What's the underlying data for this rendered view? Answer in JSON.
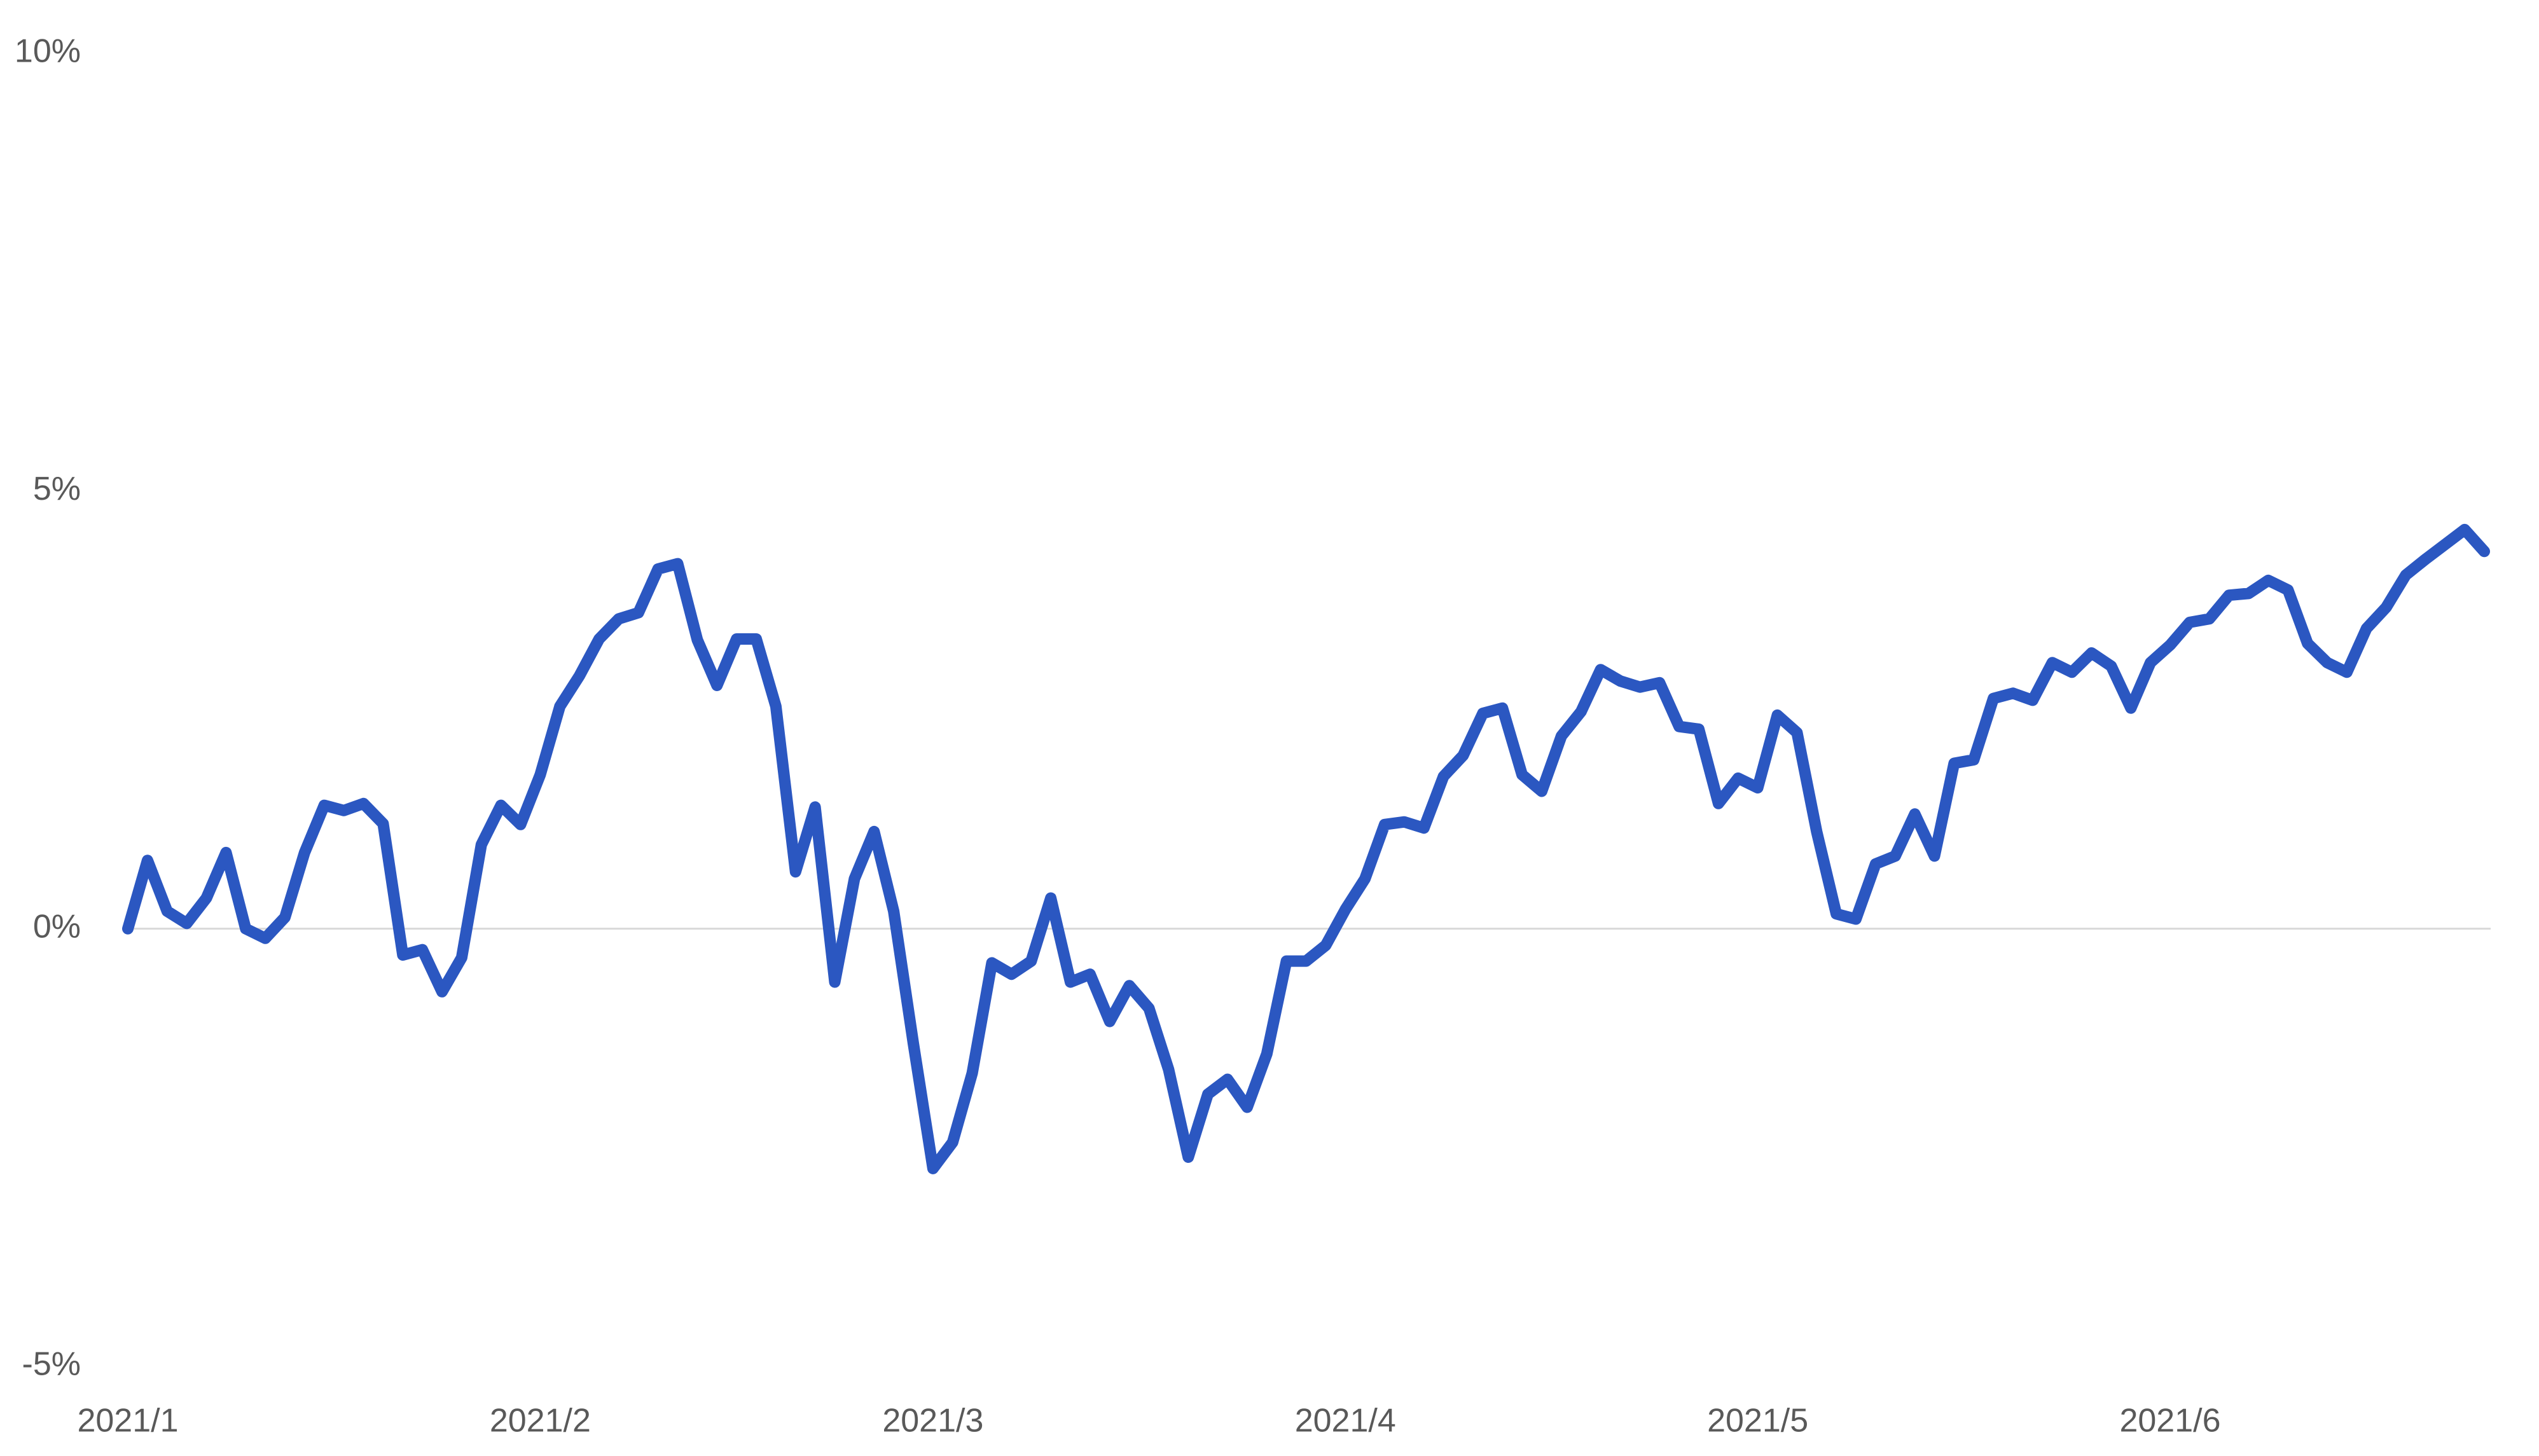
{
  "chart_data": {
    "type": "line",
    "color": "#2b57c1",
    "ylim": [
      -5,
      10
    ],
    "yticks": [
      {
        "value": -5,
        "label": "-5%"
      },
      {
        "value": 0,
        "label": "0%"
      },
      {
        "value": 5,
        "label": "5%"
      },
      {
        "value": 10,
        "label": "10%"
      }
    ],
    "zero_line": true,
    "categories": [
      "2021/1",
      null,
      null,
      null,
      null,
      null,
      null,
      null,
      null,
      null,
      null,
      null,
      null,
      null,
      null,
      null,
      null,
      null,
      null,
      null,
      null,
      "2021/2",
      null,
      null,
      null,
      null,
      null,
      null,
      null,
      null,
      null,
      null,
      null,
      null,
      null,
      null,
      null,
      null,
      null,
      null,
      null,
      "2021/3",
      null,
      null,
      null,
      null,
      null,
      null,
      null,
      null,
      null,
      null,
      null,
      null,
      null,
      null,
      null,
      null,
      null,
      null,
      null,
      null,
      "2021/4",
      null,
      null,
      null,
      null,
      null,
      null,
      null,
      null,
      null,
      null,
      null,
      null,
      null,
      null,
      null,
      null,
      null,
      null,
      null,
      null,
      "2021/5",
      null,
      null,
      null,
      null,
      null,
      null,
      null,
      null,
      null,
      null,
      null,
      null,
      null,
      null,
      null,
      null,
      null,
      null,
      null,
      null,
      "2021/6",
      null,
      null,
      null,
      null,
      null,
      null,
      null,
      null,
      null,
      null,
      null,
      null,
      null,
      null,
      null,
      null
    ],
    "values": [
      0,
      0.78,
      0.2,
      0.06,
      0.35,
      0.87,
      0,
      -0.11,
      0.13,
      0.87,
      1.41,
      1.35,
      1.43,
      1.2,
      -0.3,
      -0.24,
      -0.72,
      -0.33,
      0.96,
      1.41,
      1.19,
      1.76,
      2.54,
      2.89,
      3.31,
      3.54,
      3.61,
      4.11,
      4.17,
      3.3,
      2.78,
      3.31,
      3.31,
      2.54,
      0.65,
      1.39,
      -0.61,
      0.57,
      1.11,
      0.2,
      -1.31,
      -2.74,
      -2.44,
      -1.65,
      -0.39,
      -0.52,
      -0.37,
      0.35,
      -0.61,
      -0.52,
      -1.06,
      -0.65,
      -0.91,
      -1.61,
      -2.61,
      -1.89,
      -1.72,
      -2.04,
      -1.43,
      -0.37,
      -0.37,
      -0.19,
      0.22,
      0.57,
      1.19,
      1.22,
      1.15,
      1.74,
      1.98,
      2.46,
      2.52,
      1.76,
      1.57,
      2.2,
      2.48,
      2.96,
      2.83,
      2.76,
      2.81,
      2.31,
      2.28,
      1.43,
      1.72,
      1.61,
      2.44,
      2.24,
      1.11,
      0.17,
      0.11,
      0.74,
      0.83,
      1.31,
      0.83,
      1.89,
      1.93,
      2.63,
      2.69,
      2.61,
      3.04,
      2.93,
      3.15,
      3,
      2.52,
      3.04,
      3.24,
      3.5,
      3.54,
      3.81,
      3.83,
      3.98,
      3.87,
      3.26,
      3.04,
      2.93,
      3.43,
      3.67,
      4.04,
      4.22,
      4.39,
      4.56,
      4.31
    ]
  }
}
